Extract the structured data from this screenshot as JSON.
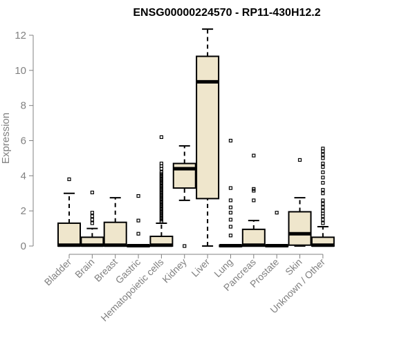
{
  "chart_data": {
    "type": "box",
    "title": "ENSG00000224570 - RP11-430H12.2",
    "xlabel": "",
    "ylabel": "Expression",
    "ylim": [
      0,
      12.5
    ],
    "yticks": [
      0,
      2,
      4,
      6,
      8,
      10,
      12
    ],
    "grid": false,
    "legend": "none",
    "box_fill": "#efe6cc",
    "categories": [
      "Bladder",
      "Brain",
      "Breast",
      "Gastric",
      "Hematopoietic cells",
      "Kidney",
      "Liver",
      "Lung",
      "Pancreas",
      "Prostate",
      "Skin",
      "Unknown / Other"
    ],
    "boxes": [
      {
        "q1": 0,
        "median": 0.05,
        "q3": 1.3,
        "whisker_low": 0,
        "whisker_high": 3.0,
        "outliers": [
          3.8
        ]
      },
      {
        "q1": 0,
        "median": 0.05,
        "q3": 0.5,
        "whisker_low": 0,
        "whisker_high": 1.0,
        "outliers": [
          1.3,
          1.5,
          1.7,
          1.9,
          3.05
        ]
      },
      {
        "q1": 0,
        "median": 0.05,
        "q3": 1.35,
        "whisker_low": 0,
        "whisker_high": 2.75,
        "outliers": []
      },
      {
        "q1": 0,
        "median": 0.02,
        "q3": 0.05,
        "whisker_low": 0,
        "whisker_high": 0.05,
        "outliers": [
          0.7,
          1.45,
          2.85
        ]
      },
      {
        "q1": 0,
        "median": 0.05,
        "q3": 0.55,
        "whisker_low": 0,
        "whisker_high": 1.3,
        "outliers": [
          1.4,
          1.5,
          1.6,
          1.7,
          1.8,
          1.9,
          2.0,
          2.1,
          2.2,
          2.3,
          2.4,
          2.5,
          2.6,
          2.7,
          2.8,
          2.9,
          3.0,
          3.1,
          3.2,
          3.3,
          3.4,
          3.5,
          3.6,
          3.7,
          3.8,
          3.9,
          4.0,
          4.1,
          4.2,
          4.4,
          4.55,
          4.7,
          6.2
        ]
      },
      {
        "q1": 3.3,
        "median": 4.4,
        "q3": 4.7,
        "whisker_low": 2.6,
        "whisker_high": 5.7,
        "outliers": [
          0
        ]
      },
      {
        "q1": 2.7,
        "median": 9.35,
        "q3": 10.8,
        "whisker_low": 0,
        "whisker_high": 12.35,
        "outliers": []
      },
      {
        "q1": 0,
        "median": 0.02,
        "q3": 0.05,
        "whisker_low": 0,
        "whisker_high": 0.05,
        "outliers": [
          0.6,
          1.1,
          1.5,
          1.9,
          2.2,
          2.6,
          3.3,
          6.0
        ]
      },
      {
        "q1": 0,
        "median": 0.05,
        "q3": 0.95,
        "whisker_low": 0,
        "whisker_high": 1.45,
        "outliers": [
          2.6,
          3.15,
          3.25,
          5.15
        ]
      },
      {
        "q1": 0,
        "median": 0.02,
        "q3": 0.05,
        "whisker_low": 0,
        "whisker_high": 0.05,
        "outliers": [
          1.9
        ]
      },
      {
        "q1": 0.05,
        "median": 0.7,
        "q3": 1.95,
        "whisker_low": 0,
        "whisker_high": 2.75,
        "outliers": [
          4.9
        ]
      },
      {
        "q1": 0,
        "median": 0.05,
        "q3": 0.5,
        "whisker_low": 0,
        "whisker_high": 1.1,
        "outliers": [
          1.3,
          1.5,
          1.7,
          1.85,
          2.0,
          2.2,
          2.4,
          2.6,
          3.0,
          3.2,
          3.6,
          3.9,
          4.2,
          4.5,
          4.7,
          5.0,
          5.2,
          5.4,
          5.55
        ]
      }
    ]
  }
}
